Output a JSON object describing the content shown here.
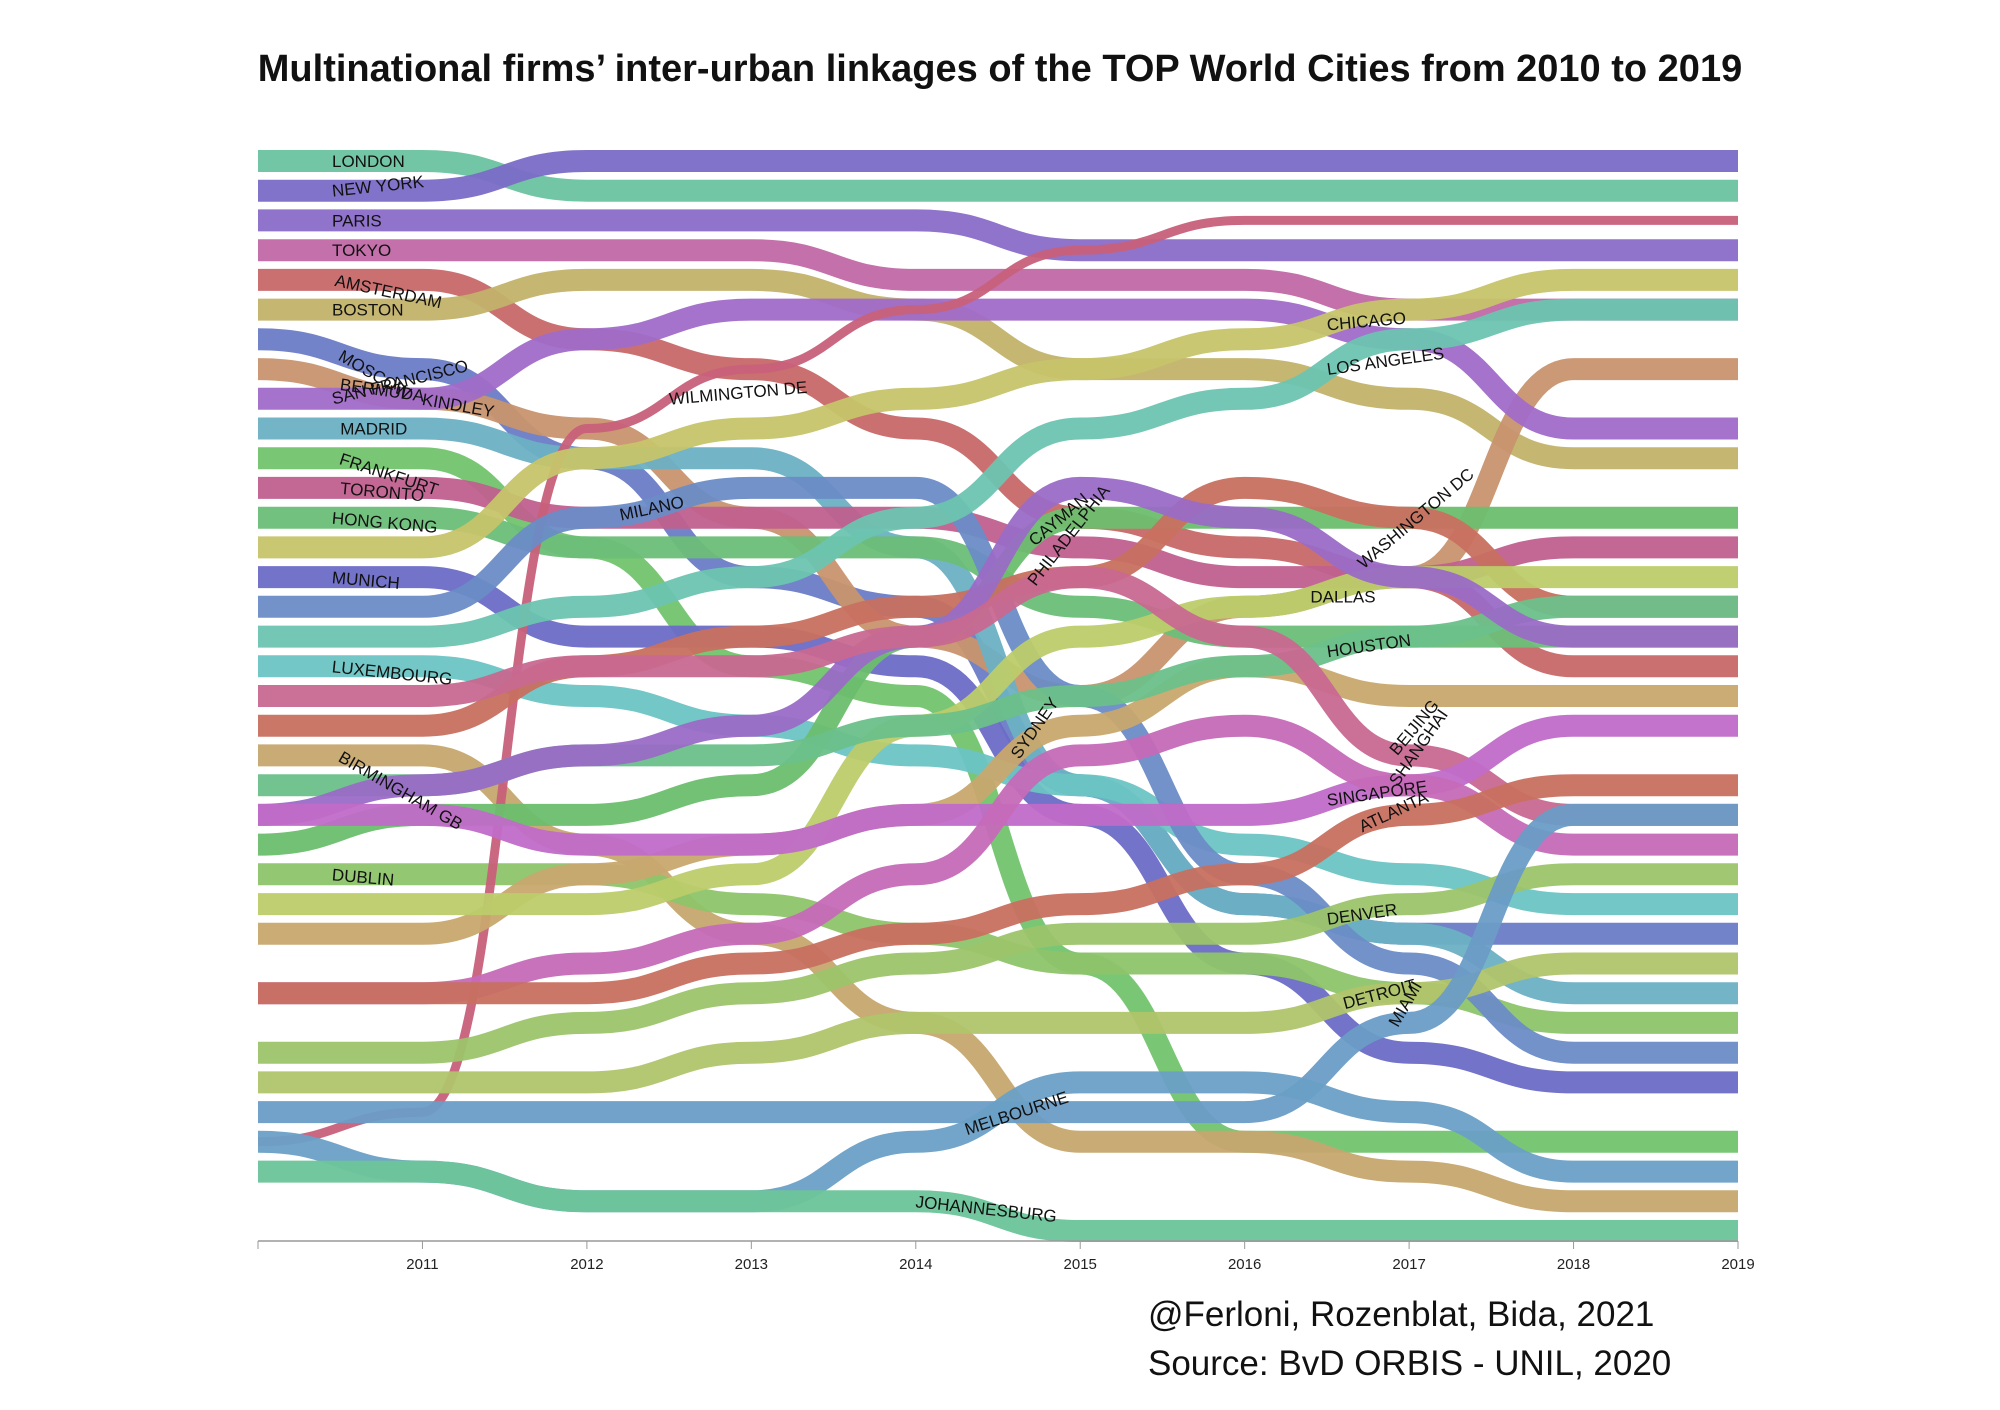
{
  "chart_data": {
    "type": "line",
    "title": "Multinational firms’ inter-urban linkages of the TOP World Cities from 2010 to 2019",
    "xlabel": "",
    "ylabel": "",
    "x_ticks": [
      "2011",
      "2012",
      "2013",
      "2014",
      "2015",
      "2016",
      "2017",
      "2018",
      "2019"
    ],
    "years": [
      2010,
      2011,
      2012,
      2013,
      2014,
      2015,
      2016,
      2017,
      2018,
      2019
    ],
    "rank_count": 37,
    "series": [
      {
        "name": "LONDON",
        "color": "#6cc3a0",
        "ranks": [
          1,
          1,
          2,
          2,
          2,
          2,
          2,
          2,
          2,
          2
        ],
        "label_year": 2010.45,
        "label_angle": 0
      },
      {
        "name": "NEW YORK",
        "color": "#7a6cc6",
        "ranks": [
          2,
          2,
          1,
          1,
          1,
          1,
          1,
          1,
          1,
          1
        ],
        "label_year": 2010.45,
        "label_angle": -6
      },
      {
        "name": "PARIS",
        "color": "#8a6cc8",
        "ranks": [
          3,
          3,
          3,
          3,
          3,
          4,
          4,
          4,
          4,
          4
        ],
        "label_year": 2010.45,
        "label_angle": 0
      },
      {
        "name": "TOKYO",
        "color": "#c068a6",
        "ranks": [
          4,
          4,
          4,
          4,
          5,
          5,
          5,
          6,
          6,
          6
        ],
        "label_year": 2010.45,
        "label_angle": 0
      },
      {
        "name": "AMSTERDAM",
        "color": "#c86868",
        "ranks": [
          5,
          5,
          7,
          8,
          10,
          13,
          14,
          15,
          18,
          18
        ],
        "label_year": 2010.47,
        "label_angle": 12
      },
      {
        "name": "BOSTON",
        "color": "#c2b26a",
        "ranks": [
          6,
          6,
          5,
          5,
          6,
          8,
          8,
          9,
          11,
          11
        ],
        "label_year": 2010.45,
        "label_angle": 0
      },
      {
        "name": "MOSCOW",
        "color": "#6a7cc6",
        "ranks": [
          7,
          8,
          11,
          15,
          16,
          22,
          26,
          27,
          27,
          27
        ],
        "label_year": 2010.5,
        "label_angle": 30
      },
      {
        "name": "BERMUDA",
        "color": "#c8946e",
        "ranks": [
          8,
          9,
          10,
          13,
          17,
          19,
          16,
          15,
          8,
          8
        ],
        "label_year": 2010.5,
        "label_angle": 8
      },
      {
        "name": "KINDLEY",
        "color": "#c8946e",
        "ranks": [],
        "label_year": 2011.0,
        "label_angle": 10,
        "label_ref": "BERMUDA"
      },
      {
        "name": "SAN FRANCISCO",
        "color": "#a06cc8",
        "ranks": [
          9,
          9,
          7,
          6,
          6,
          6,
          6,
          7,
          10,
          10
        ],
        "label_year": 2010.45,
        "label_angle": -14
      },
      {
        "name": "MADRID",
        "color": "#6cb0c4",
        "ranks": [
          10,
          10,
          11,
          11,
          14,
          22,
          26,
          27,
          29,
          29
        ],
        "label_year": 2010.5,
        "label_angle": 0
      },
      {
        "name": "FRANKFURT",
        "color": "#72c46e",
        "ranks": [
          11,
          11,
          14,
          18,
          19,
          28,
          34,
          34,
          34,
          34
        ],
        "label_year": 2010.5,
        "label_angle": 18
      },
      {
        "name": "TORONTO",
        "color": "#c0608e",
        "ranks": [
          12,
          12,
          13,
          13,
          13,
          14,
          15,
          15,
          14,
          14
        ],
        "label_year": 2010.5,
        "label_angle": 5
      },
      {
        "name": "HONG KONG",
        "color": "#6cbe78",
        "ranks": [
          13,
          13,
          14,
          14,
          14,
          16,
          17,
          17,
          17,
          17
        ],
        "label_year": 2010.45,
        "label_angle": 5
      },
      {
        "name": "MUNICH",
        "color": "#6a6cc6",
        "ranks": [
          15,
          15,
          17,
          17,
          18,
          23,
          28,
          31,
          32,
          32
        ],
        "label_year": 2010.45,
        "label_angle": 5
      },
      {
        "name": "LUXEMBOURG",
        "color": "#6cc4c4",
        "ranks": [
          18,
          18,
          19,
          20,
          21,
          22,
          24,
          25,
          26,
          26
        ],
        "label_year": 2010.45,
        "label_angle": 6
      },
      {
        "name": "BIRMINGHAM GB",
        "color": "#c6a66e",
        "ranks": [
          21,
          21,
          24,
          27,
          30,
          34,
          34,
          35,
          36,
          36
        ],
        "label_year": 2010.5,
        "label_angle": 30
      },
      {
        "name": "DUBLIN",
        "color": "#8ec46a",
        "ranks": [
          25,
          25,
          25,
          26,
          27,
          28,
          28,
          29,
          30,
          30
        ],
        "label_year": 2010.45,
        "label_angle": 5
      },
      {
        "name": "WILMINGTON DE",
        "color": "#c8607a",
        "ranks": [
          34,
          33,
          10,
          8,
          6,
          4,
          3,
          3,
          3,
          3
        ],
        "label_year": 2012.5,
        "label_angle": -5
      },
      {
        "name": "MILANO",
        "color": "#6a8cc6",
        "ranks": [
          16,
          16,
          13,
          12,
          12,
          19,
          25,
          28,
          31,
          31
        ],
        "label_year": 2012.2,
        "label_angle": -12
      },
      {
        "name": "CAYMAN",
        "color": "#6cbe6e",
        "ranks": [
          24,
          23,
          23,
          22,
          17,
          13,
          13,
          13,
          13,
          13
        ],
        "label_year": 2014.7,
        "label_angle": -40
      },
      {
        "name": "PHILADELPHIA",
        "color": "#c87060",
        "ranks": [
          20,
          20,
          18,
          17,
          16,
          15,
          12,
          13,
          16,
          16
        ],
        "label_year": 2014.7,
        "label_angle": -52
      },
      {
        "name": "SYDNEY",
        "color": "#c8a86e",
        "ranks": [
          27,
          27,
          25,
          24,
          23,
          20,
          18,
          19,
          19,
          19
        ],
        "label_year": 2014.6,
        "label_angle": -55
      },
      {
        "name": "CHICAGO",
        "color": "#c6c46a",
        "ranks": [
          14,
          14,
          11,
          10,
          9,
          8,
          7,
          6,
          5,
          5
        ],
        "label_year": 2016.5,
        "label_angle": -5
      },
      {
        "name": "LOS ANGELES",
        "color": "#6cc4b0",
        "ranks": [
          17,
          17,
          16,
          15,
          13,
          10,
          9,
          7,
          6,
          6
        ],
        "label_year": 2016.5,
        "label_angle": -8
      },
      {
        "name": "DALLAS",
        "color": "#bccc6a",
        "ranks": [
          26,
          26,
          26,
          25,
          20,
          17,
          16,
          15,
          15,
          15
        ],
        "label_year": 2016.4,
        "label_angle": 0
      },
      {
        "name": "HOUSTON",
        "color": "#6cc08a",
        "ranks": [
          22,
          22,
          21,
          21,
          20,
          19,
          18,
          17,
          16,
          16
        ],
        "label_year": 2016.5,
        "label_angle": -8
      },
      {
        "name": "WASHINGTON DC",
        "color": "#9a6cc6",
        "ranks": [
          23,
          22,
          21,
          20,
          17,
          12,
          13,
          15,
          17,
          17
        ],
        "label_year": 2016.7,
        "label_angle": -40
      },
      {
        "name": "BEIJING",
        "color": "#c86890",
        "ranks": [
          19,
          19,
          18,
          18,
          17,
          15,
          17,
          21,
          23,
          23
        ],
        "label_year": 2016.9,
        "label_angle": -50
      },
      {
        "name": "SINGAPORE",
        "color": "#c06cc8",
        "ranks": [
          23,
          23,
          24,
          24,
          23,
          23,
          23,
          22,
          20,
          20
        ],
        "label_year": 2016.5,
        "label_angle": -8
      },
      {
        "name": "SHANGHAI",
        "color": "#c66ab8",
        "ranks": [
          29,
          29,
          28,
          27,
          25,
          21,
          20,
          22,
          24,
          24
        ],
        "label_year": 2016.9,
        "label_angle": -55
      },
      {
        "name": "ATLANTA",
        "color": "#c87060",
        "ranks": [
          29,
          29,
          29,
          28,
          27,
          26,
          25,
          23,
          22,
          22
        ],
        "label_year": 2016.7,
        "label_angle": -25
      },
      {
        "name": "DENVER",
        "color": "#9cc46a",
        "ranks": [
          31,
          31,
          30,
          29,
          28,
          27,
          27,
          26,
          25,
          25
        ],
        "label_year": 2016.5,
        "label_angle": -8
      },
      {
        "name": "DETROIT",
        "color": "#b0c46a",
        "ranks": [
          32,
          32,
          32,
          31,
          30,
          30,
          30,
          29,
          28,
          28
        ],
        "label_year": 2016.6,
        "label_angle": -15
      },
      {
        "name": "MIAMI",
        "color": "#6a9cc6",
        "ranks": [
          33,
          33,
          33,
          33,
          33,
          33,
          33,
          30,
          23,
          23
        ],
        "label_year": 2016.9,
        "label_angle": -60
      },
      {
        "name": "MELBOURNE",
        "color": "#6aa0c6",
        "ranks": [
          34,
          35,
          36,
          36,
          34,
          32,
          32,
          33,
          35,
          35
        ],
        "label_year": 2014.3,
        "label_angle": -18
      },
      {
        "name": "JOHANNESBURG",
        "color": "#6cc49a",
        "ranks": [
          35,
          35,
          36,
          36,
          36,
          37,
          37,
          37,
          37,
          37
        ],
        "label_year": 2014.0,
        "label_angle": 6
      }
    ]
  },
  "credits": {
    "line1": "@Ferloni, Rozenblat, Bida, 2021",
    "line2": "Source: BvD ORBIS - UNIL, 2020"
  }
}
